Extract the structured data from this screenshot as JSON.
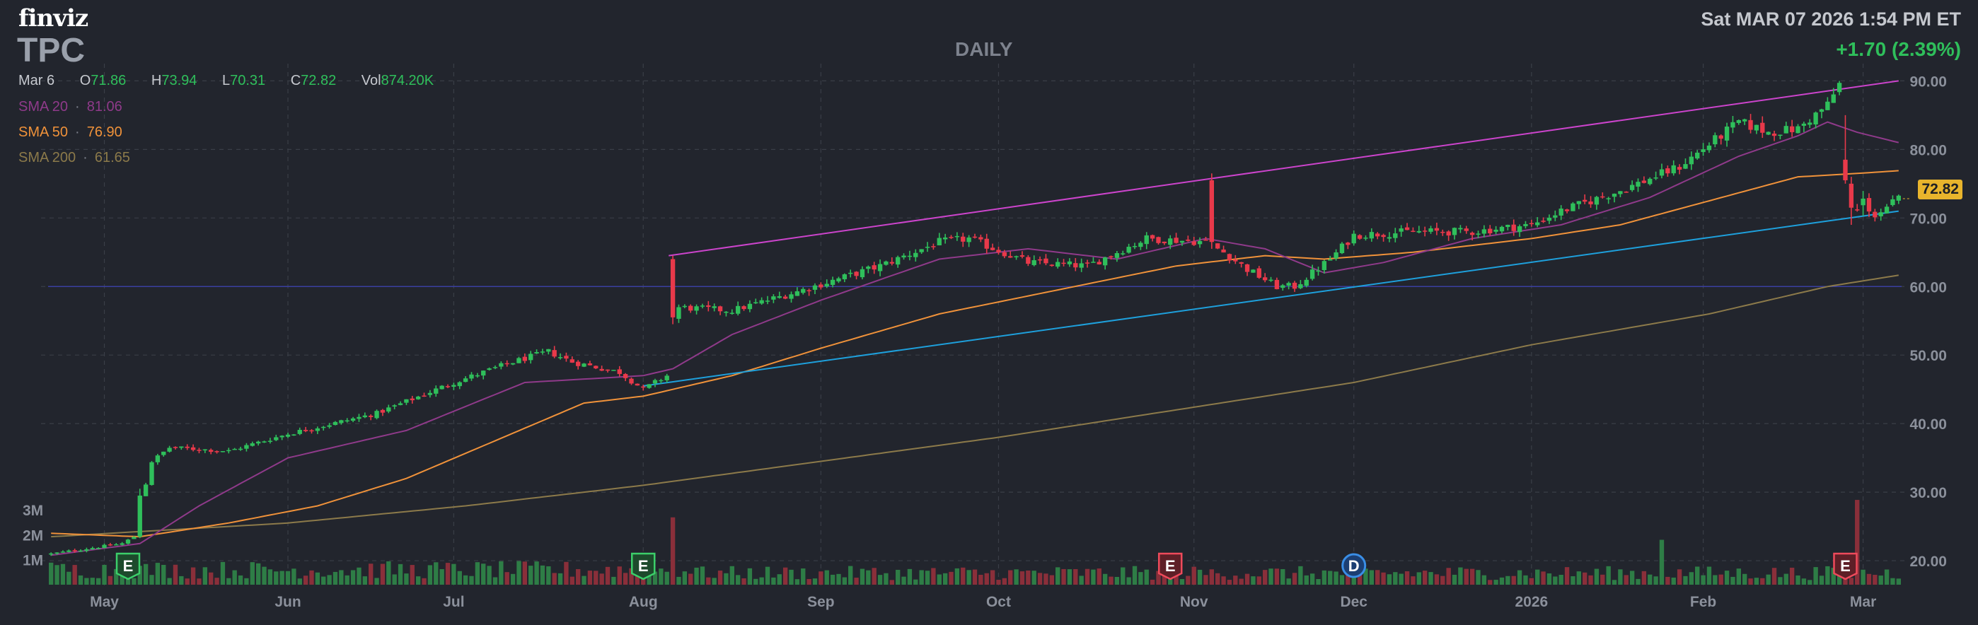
{
  "header": {
    "logo": "finviz",
    "ticker": "TPC",
    "period": "DAILY",
    "datetime": "Sat MAR 07 2026 1:54 PM ET",
    "change": "+1.70 (2.39%)"
  },
  "ohlc": {
    "date": "Mar 6",
    "o_label": "O",
    "o": "71.86",
    "h_label": "H",
    "h": "73.94",
    "l_label": "L",
    "l": "70.31",
    "c_label": "C",
    "c": "72.82",
    "vol_label": "Vol",
    "vol": "874.20K"
  },
  "sma": [
    {
      "label": "SMA 20",
      "value": "81.06",
      "color": "#8f3a8a"
    },
    {
      "label": "SMA 50",
      "value": "76.90",
      "color": "#f0923a"
    },
    {
      "label": "SMA 200",
      "value": "61.65",
      "color": "#8c7a4a"
    }
  ],
  "last_price": "72.82",
  "colors": {
    "up": "#2fbf5b",
    "down": "#e8394a",
    "vol_up": "#2e7d46",
    "vol_down": "#8a2f3a",
    "channel_top": "#cc44cc",
    "channel_bottom": "#1ea0dc",
    "horizontal_line": "#3a3fa0",
    "grid": "#3a3e47",
    "last_price": "#e8b42c"
  },
  "chart_data": {
    "type": "candlestick",
    "title": "TPC",
    "period": "DAILY",
    "y_ticks": [
      "90.00",
      "80.00",
      "70.00",
      "60.00",
      "50.00",
      "40.00",
      "30.00",
      "20.00"
    ],
    "ylim": [
      16.5,
      92
    ],
    "volume_ticks": [
      "3M",
      "2M",
      "1M"
    ],
    "volume_max": 3.6,
    "x_ticks": [
      "May",
      "Jun",
      "Jul",
      "Aug",
      "Sep",
      "Oct",
      "Nov",
      "Dec",
      "2026",
      "Feb",
      "Mar"
    ],
    "x_tick_bar_index": [
      9,
      40,
      68,
      100,
      130,
      160,
      193,
      220,
      250,
      279,
      306
    ],
    "bar_count": 313,
    "anchors": [
      [
        0,
        21.0
      ],
      [
        12,
        22.5
      ],
      [
        14,
        23.5
      ],
      [
        15,
        28.0
      ],
      [
        17,
        34.5
      ],
      [
        20,
        36.5
      ],
      [
        30,
        36.0
      ],
      [
        40,
        38.5
      ],
      [
        55,
        41.5
      ],
      [
        68,
        46.0
      ],
      [
        78,
        49.0
      ],
      [
        84,
        50.5
      ],
      [
        88,
        49.0
      ],
      [
        96,
        47.5
      ],
      [
        100,
        45.0
      ],
      [
        103,
        46.5
      ],
      [
        104,
        47.0
      ],
      [
        105,
        57.0
      ],
      [
        115,
        56.5
      ],
      [
        125,
        59.0
      ],
      [
        140,
        63.0
      ],
      [
        150,
        66.5
      ],
      [
        155,
        67.0
      ],
      [
        165,
        63.5
      ],
      [
        175,
        63.0
      ],
      [
        185,
        67.0
      ],
      [
        195,
        66.5
      ],
      [
        198,
        65.0
      ],
      [
        202,
        62.5
      ],
      [
        207,
        60.0
      ],
      [
        210,
        60.0
      ],
      [
        216,
        64.0
      ],
      [
        220,
        67.5
      ],
      [
        230,
        68.0
      ],
      [
        240,
        68.0
      ],
      [
        250,
        69.0
      ],
      [
        255,
        71.0
      ],
      [
        265,
        74.0
      ],
      [
        275,
        77.5
      ],
      [
        285,
        84.0
      ],
      [
        290,
        82.5
      ],
      [
        295,
        83.0
      ],
      [
        300,
        86.5
      ],
      [
        302,
        89.5
      ],
      [
        303,
        78.0
      ],
      [
        305,
        71.0
      ],
      [
        308,
        70.5
      ],
      [
        312,
        72.82
      ]
    ],
    "gaps": [
      {
        "bar": 15,
        "open": 23.5,
        "close": 29.5,
        "high": 30.5,
        "low": 23.3
      },
      {
        "bar": 105,
        "open": 64.0,
        "close": 55.5,
        "high": 64.5,
        "low": 54.5
      },
      {
        "bar": 196,
        "open": 75.5,
        "close": 66.5,
        "high": 76.5,
        "low": 65.5
      },
      {
        "bar": 303,
        "open": 78.5,
        "close": 75.5,
        "high": 85.0,
        "low": 75.0
      },
      {
        "bar": 304,
        "open": 75.0,
        "close": 71.5,
        "high": 76.0,
        "low": 69.0
      },
      {
        "bar": 306,
        "open": 71.86,
        "close": 72.82,
        "high": 73.94,
        "low": 70.31
      }
    ],
    "volume_spikes": [
      {
        "bar": 105,
        "value": 2.7
      },
      {
        "bar": 272,
        "value": 1.8
      },
      {
        "bar": 305,
        "value": 3.4
      }
    ],
    "sma20": {
      "name": "SMA 20",
      "last": 81.06,
      "points": [
        [
          0,
          20.8
        ],
        [
          15,
          22.5
        ],
        [
          25,
          28.0
        ],
        [
          40,
          35.0
        ],
        [
          60,
          39.0
        ],
        [
          80,
          46.0
        ],
        [
          100,
          47.0
        ],
        [
          105,
          48.0
        ],
        [
          115,
          53.0
        ],
        [
          130,
          58.0
        ],
        [
          150,
          64.0
        ],
        [
          165,
          65.5
        ],
        [
          180,
          64.0
        ],
        [
          195,
          67.0
        ],
        [
          205,
          65.5
        ],
        [
          215,
          62.0
        ],
        [
          225,
          63.5
        ],
        [
          240,
          67.0
        ],
        [
          255,
          69.0
        ],
        [
          270,
          73.0
        ],
        [
          285,
          79.0
        ],
        [
          295,
          82.0
        ],
        [
          300,
          84.0
        ],
        [
          305,
          82.5
        ],
        [
          312,
          81.0
        ]
      ]
    },
    "sma50": {
      "name": "SMA 50",
      "last": 76.9,
      "points": [
        [
          0,
          24.0
        ],
        [
          15,
          23.5
        ],
        [
          30,
          25.5
        ],
        [
          45,
          28.0
        ],
        [
          60,
          32.0
        ],
        [
          75,
          37.5
        ],
        [
          90,
          43.0
        ],
        [
          100,
          44.0
        ],
        [
          115,
          47.0
        ],
        [
          130,
          51.0
        ],
        [
          150,
          56.0
        ],
        [
          170,
          59.5
        ],
        [
          190,
          63.0
        ],
        [
          205,
          64.5
        ],
        [
          215,
          64.0
        ],
        [
          230,
          65.0
        ],
        [
          250,
          67.0
        ],
        [
          265,
          69.0
        ],
        [
          280,
          72.5
        ],
        [
          295,
          76.0
        ],
        [
          305,
          76.5
        ],
        [
          312,
          76.9
        ]
      ]
    },
    "sma200": {
      "name": "SMA 200",
      "last": 61.65,
      "points": [
        [
          0,
          23.5
        ],
        [
          40,
          25.5
        ],
        [
          70,
          28.0
        ],
        [
          100,
          31.0
        ],
        [
          130,
          34.5
        ],
        [
          160,
          38.0
        ],
        [
          190,
          42.0
        ],
        [
          220,
          46.0
        ],
        [
          250,
          51.5
        ],
        [
          280,
          56.0
        ],
        [
          300,
          60.0
        ],
        [
          312,
          61.65
        ]
      ]
    },
    "channel_top": {
      "from": [
        100,
        64.5
      ],
      "to": [
        312,
        90.0
      ]
    },
    "channel_bottom": {
      "from": [
        100,
        45.5
      ],
      "to": [
        312,
        71.0
      ]
    },
    "horizontal_line": 60.0,
    "earnings_markers": [
      {
        "bar": 13,
        "label": "E",
        "kind": "earnings-beat"
      },
      {
        "bar": 100,
        "label": "E",
        "kind": "earnings-beat"
      },
      {
        "bar": 189,
        "label": "E",
        "kind": "earnings-miss"
      },
      {
        "bar": 220,
        "label": "D",
        "kind": "dividend"
      },
      {
        "bar": 303,
        "label": "E",
        "kind": "earnings-miss"
      }
    ]
  }
}
